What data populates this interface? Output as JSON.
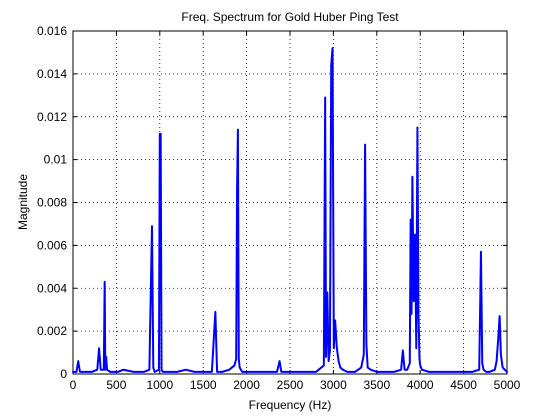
{
  "chart_data": {
    "type": "line",
    "title": "Freq. Spectrum for Gold Huber Ping Test",
    "xlabel": "Frequency (Hz)",
    "ylabel": "Magnitude",
    "xlim": [
      0,
      5000
    ],
    "ylim": [
      0,
      0.016
    ],
    "xticks": [
      0,
      500,
      1000,
      1500,
      2000,
      2500,
      3000,
      3500,
      4000,
      4500,
      5000
    ],
    "yticks": [
      0,
      0.002,
      0.004,
      0.006,
      0.008,
      0.01,
      0.012,
      0.014,
      0.016
    ],
    "xtick_labels": [
      "0",
      "500",
      "1000",
      "1500",
      "2000",
      "2500",
      "3000",
      "3500",
      "4000",
      "4500",
      "5000"
    ],
    "ytick_labels": [
      "0",
      "0.002",
      "0.004",
      "0.006",
      "0.008",
      "0.01",
      "0.012",
      "0.014",
      "0.016"
    ],
    "grid": true,
    "colors": {
      "line": "#0000ff",
      "axes": "#000000",
      "background": "#ffffff"
    },
    "series": [
      {
        "x": [
          0,
          40,
          60,
          80,
          120,
          220,
          280,
          300,
          320,
          355,
          365,
          372,
          382,
          392,
          430,
          520,
          580,
          700,
          820,
          880,
          910,
          925,
          940,
          990,
          1000,
          1010,
          1020,
          1035,
          1060,
          1100,
          1200,
          1300,
          1400,
          1500,
          1600,
          1640,
          1660,
          1680,
          1720,
          1800,
          1860,
          1880,
          1890,
          1900,
          1910,
          1920,
          1950,
          2050,
          2200,
          2350,
          2380,
          2400,
          2420,
          2500,
          2600,
          2700,
          2800,
          2860,
          2890,
          2905,
          2915,
          2930,
          2945,
          2960,
          2975,
          2990,
          3005,
          3020,
          3040,
          3060,
          3080,
          3110,
          3160,
          3250,
          3320,
          3350,
          3365,
          3380,
          3395,
          3430,
          3500,
          3600,
          3700,
          3780,
          3800,
          3820,
          3850,
          3880,
          3890,
          3900,
          3910,
          3925,
          3940,
          3955,
          3968,
          3980,
          3992,
          4000,
          4020,
          4100,
          4200,
          4300,
          4400,
          4500,
          4600,
          4680,
          4700,
          4715,
          4730,
          4760,
          4800,
          4860,
          4880,
          4900,
          4915,
          4930,
          4950,
          5000
        ],
        "y": [
          0.0001,
          0.0001,
          0.0006,
          0.0001,
          0.0001,
          0.0001,
          0.0002,
          0.0012,
          0.0002,
          0.0002,
          0.0043,
          0.0002,
          0.0008,
          0.0002,
          0.0001,
          0.0001,
          0.0002,
          0.0001,
          0.0001,
          0.0002,
          0.0069,
          0.0003,
          0.0001,
          0.0002,
          0.0112,
          0.0112,
          0.0002,
          0.0001,
          0.0001,
          0.0001,
          0.0001,
          0.0002,
          0.0001,
          0.0001,
          0.0001,
          0.0029,
          0.0001,
          0.0001,
          0.0001,
          0.0002,
          0.0004,
          0.0007,
          0.0085,
          0.0114,
          0.0007,
          0.0003,
          0.0001,
          0.0001,
          0.0001,
          0.0001,
          0.0006,
          0.0001,
          0.0001,
          0.0001,
          0.0001,
          0.0001,
          0.0001,
          0.0003,
          0.0004,
          0.0129,
          0.0008,
          0.0038,
          0.0006,
          0.0011,
          0.0144,
          0.0152,
          0.0012,
          0.0025,
          0.0012,
          0.0006,
          0.0003,
          0.0002,
          0.0001,
          0.0001,
          0.0003,
          0.0009,
          0.0107,
          0.0014,
          0.0003,
          0.0002,
          0.0001,
          0.0001,
          0.0001,
          0.0002,
          0.0011,
          0.0002,
          0.0002,
          0.0005,
          0.0072,
          0.0028,
          0.0092,
          0.0034,
          0.0065,
          0.0012,
          0.0115,
          0.0028,
          0.0007,
          0.0004,
          0.0002,
          0.0001,
          0.0001,
          0.0001,
          0.0001,
          0.0001,
          0.0001,
          0.0002,
          0.0057,
          0.0005,
          0.0002,
          0.0001,
          0.0001,
          0.0002,
          0.0006,
          0.0017,
          0.0027,
          0.0009,
          0.0003,
          0.0001
        ]
      }
    ]
  }
}
